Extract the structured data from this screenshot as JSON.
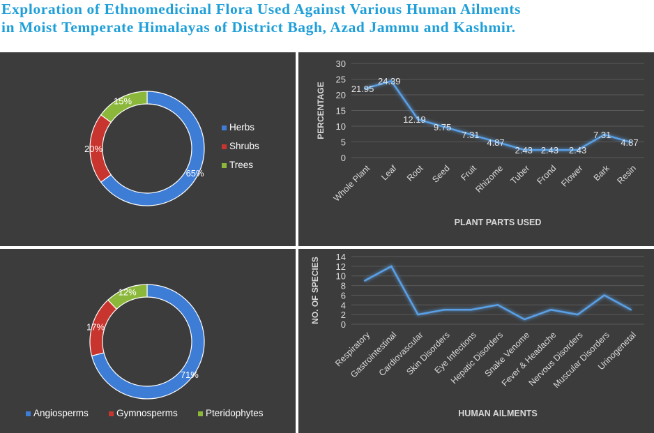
{
  "title": {
    "line1": "Exploration of Ethnomedicinal Flora Used Against Various Human Ailments",
    "line2": "in Moist Temperate Himalayas of District Bagh, Azad Jammu and Kashmir."
  },
  "colors": {
    "blue": "#3e7dd6",
    "red": "#c8352f",
    "green": "#8bb83a",
    "line": "#5aa0e6",
    "panel": "#3c3c3c",
    "title": "#1f9fd8"
  },
  "chart_data": [
    {
      "type": "pie",
      "variant": "doughnut",
      "categories": [
        "Herbs",
        "Shrubs",
        "Trees"
      ],
      "values": [
        65,
        20,
        15
      ],
      "value_labels": [
        "65%",
        "20%",
        "15%"
      ],
      "legend_position": "right"
    },
    {
      "type": "line",
      "categories": [
        "Whole Plant",
        "Leaf",
        "Root",
        "Seed",
        "Fruit",
        "Rhizome",
        "Tuber",
        "Frond",
        "Flower",
        "Bark",
        "Resin"
      ],
      "values": [
        21.95,
        24.39,
        12.19,
        9.75,
        7.31,
        4.87,
        2.43,
        2.43,
        2.43,
        7.31,
        4.87
      ],
      "value_labels": [
        "21.95",
        "24.39",
        "12.19",
        "9.75",
        "7.31",
        "4.87",
        "2.43",
        "2.43",
        "2.43",
        "7.31",
        "4.87"
      ],
      "xlabel": "PLANT PARTS USED",
      "ylabel": "PERCENTAGE",
      "ylim": [
        0,
        30
      ],
      "yticks": [
        "0",
        "5",
        "10",
        "15",
        "20",
        "25",
        "30"
      ],
      "grid": true
    },
    {
      "type": "pie",
      "variant": "doughnut",
      "categories": [
        "Angiosperms",
        "Gymnosperms",
        "Pteridophytes"
      ],
      "values": [
        71,
        17,
        12
      ],
      "value_labels": [
        "71%",
        "17%",
        "12%"
      ],
      "legend_position": "bottom"
    },
    {
      "type": "line",
      "categories": [
        "Respiratory",
        "Gastrointestinal",
        "Cardiovascular",
        "Skin Disorders",
        "Eye Infections",
        "Hepatic Disorders",
        "Snake Venome",
        "Fever & Headache",
        "Nervous Disorders",
        "Muscular Disorders",
        "Urinogenetal"
      ],
      "values": [
        9,
        12,
        2,
        3,
        3,
        4,
        1,
        3,
        2,
        6,
        3
      ],
      "xlabel": "HUMAN AILMENTS",
      "ylabel": "NO. OF SPECIES",
      "ylim": [
        0,
        14
      ],
      "yticks": [
        "0",
        "2",
        "4",
        "6",
        "8",
        "10",
        "12",
        "14"
      ],
      "grid": true
    }
  ]
}
